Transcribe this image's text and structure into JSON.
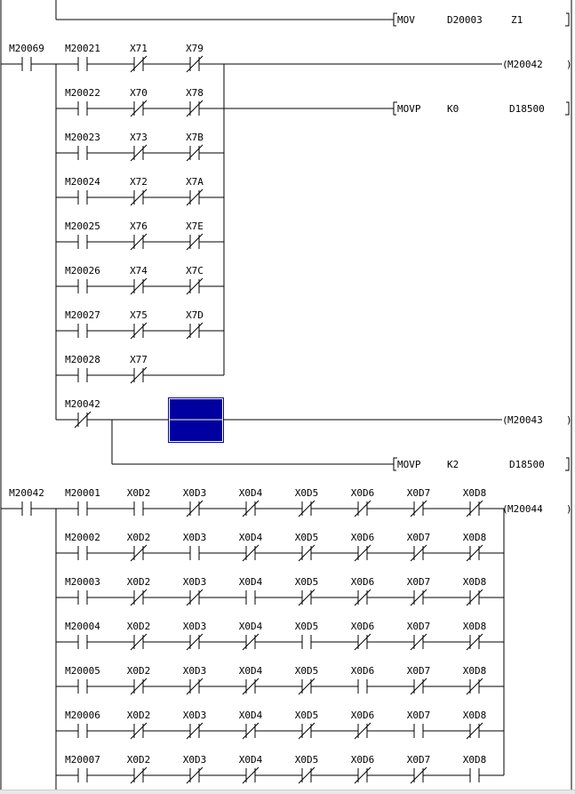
{
  "colors": {
    "line": "#000000",
    "cursor_fill": "#0000a0",
    "cursor_border": "#ffffff"
  },
  "rung0": {
    "instruction": {
      "op": "MOV",
      "args": [
        "D20003",
        "Z1"
      ]
    }
  },
  "rung1": {
    "input": {
      "label": "M20069",
      "type": "NO"
    },
    "rows": [
      [
        {
          "label": "M20021",
          "type": "NO"
        },
        {
          "label": "X71",
          "type": "NC"
        },
        {
          "label": "X79",
          "type": "NC"
        }
      ],
      [
        {
          "label": "M20022",
          "type": "NO"
        },
        {
          "label": "X70",
          "type": "NC"
        },
        {
          "label": "X78",
          "type": "NC"
        }
      ],
      [
        {
          "label": "M20023",
          "type": "NO"
        },
        {
          "label": "X73",
          "type": "NC"
        },
        {
          "label": "X7B",
          "type": "NC"
        }
      ],
      [
        {
          "label": "M20024",
          "type": "NO"
        },
        {
          "label": "X72",
          "type": "NC"
        },
        {
          "label": "X7A",
          "type": "NC"
        }
      ],
      [
        {
          "label": "M20025",
          "type": "NO"
        },
        {
          "label": "X76",
          "type": "NC"
        },
        {
          "label": "X7E",
          "type": "NC"
        }
      ],
      [
        {
          "label": "M20026",
          "type": "NO"
        },
        {
          "label": "X74",
          "type": "NC"
        },
        {
          "label": "X7C",
          "type": "NC"
        }
      ],
      [
        {
          "label": "M20027",
          "type": "NO"
        },
        {
          "label": "X75",
          "type": "NC"
        },
        {
          "label": "X7D",
          "type": "NC"
        }
      ],
      [
        {
          "label": "M20028",
          "type": "NO"
        },
        {
          "label": "X77",
          "type": "NC"
        }
      ]
    ],
    "coil": "M20042",
    "instruction": {
      "op": "MOVP",
      "args": [
        "K0",
        "D18500"
      ]
    },
    "last_row": {
      "contact": {
        "label": "M20042",
        "type": "NC"
      },
      "coil": "M20043",
      "instruction": {
        "op": "MOVP",
        "args": [
          "K2",
          "D18500"
        ]
      }
    }
  },
  "rung2": {
    "input": {
      "label": "M20042",
      "type": "NO"
    },
    "rows": [
      [
        {
          "label": "M20001",
          "type": "NO"
        },
        {
          "label": "X0D2",
          "type": "NO"
        },
        {
          "label": "X0D3",
          "type": "NC"
        },
        {
          "label": "X0D4",
          "type": "NC"
        },
        {
          "label": "X0D5",
          "type": "NC"
        },
        {
          "label": "X0D6",
          "type": "NC"
        },
        {
          "label": "X0D7",
          "type": "NC"
        },
        {
          "label": "X0D8",
          "type": "NC"
        }
      ],
      [
        {
          "label": "M20002",
          "type": "NO"
        },
        {
          "label": "X0D2",
          "type": "NC"
        },
        {
          "label": "X0D3",
          "type": "NO"
        },
        {
          "label": "X0D4",
          "type": "NC"
        },
        {
          "label": "X0D5",
          "type": "NC"
        },
        {
          "label": "X0D6",
          "type": "NC"
        },
        {
          "label": "X0D7",
          "type": "NC"
        },
        {
          "label": "X0D8",
          "type": "NC"
        }
      ],
      [
        {
          "label": "M20003",
          "type": "NO"
        },
        {
          "label": "X0D2",
          "type": "NC"
        },
        {
          "label": "X0D3",
          "type": "NC"
        },
        {
          "label": "X0D4",
          "type": "NO"
        },
        {
          "label": "X0D5",
          "type": "NC"
        },
        {
          "label": "X0D6",
          "type": "NC"
        },
        {
          "label": "X0D7",
          "type": "NC"
        },
        {
          "label": "X0D8",
          "type": "NC"
        }
      ],
      [
        {
          "label": "M20004",
          "type": "NO"
        },
        {
          "label": "X0D2",
          "type": "NC"
        },
        {
          "label": "X0D3",
          "type": "NC"
        },
        {
          "label": "X0D4",
          "type": "NC"
        },
        {
          "label": "X0D5",
          "type": "NO"
        },
        {
          "label": "X0D6",
          "type": "NC"
        },
        {
          "label": "X0D7",
          "type": "NC"
        },
        {
          "label": "X0D8",
          "type": "NC"
        }
      ],
      [
        {
          "label": "M20005",
          "type": "NO"
        },
        {
          "label": "X0D2",
          "type": "NC"
        },
        {
          "label": "X0D3",
          "type": "NC"
        },
        {
          "label": "X0D4",
          "type": "NC"
        },
        {
          "label": "X0D5",
          "type": "NC"
        },
        {
          "label": "X0D6",
          "type": "NO"
        },
        {
          "label": "X0D7",
          "type": "NC"
        },
        {
          "label": "X0D8",
          "type": "NC"
        }
      ],
      [
        {
          "label": "M20006",
          "type": "NO"
        },
        {
          "label": "X0D2",
          "type": "NC"
        },
        {
          "label": "X0D3",
          "type": "NC"
        },
        {
          "label": "X0D4",
          "type": "NC"
        },
        {
          "label": "X0D5",
          "type": "NC"
        },
        {
          "label": "X0D6",
          "type": "NC"
        },
        {
          "label": "X0D7",
          "type": "NO"
        },
        {
          "label": "X0D8",
          "type": "NC"
        }
      ],
      [
        {
          "label": "M20007",
          "type": "NO"
        },
        {
          "label": "X0D2",
          "type": "NC"
        },
        {
          "label": "X0D3",
          "type": "NC"
        },
        {
          "label": "X0D4",
          "type": "NC"
        },
        {
          "label": "X0D5",
          "type": "NC"
        },
        {
          "label": "X0D6",
          "type": "NC"
        },
        {
          "label": "X0D7",
          "type": "NC"
        },
        {
          "label": "X0D8",
          "type": "NO"
        }
      ]
    ],
    "coil": "M20044"
  }
}
